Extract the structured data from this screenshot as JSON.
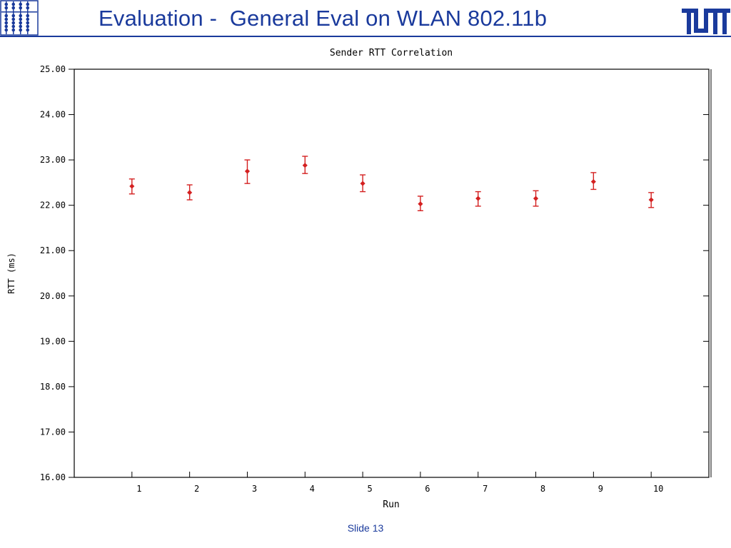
{
  "slide": {
    "title": "Evaluation -  General Eval on WLAN 802.11b",
    "footer": "Slide 13",
    "title_color": "#1a3a9c"
  },
  "chart_data": {
    "type": "scatter",
    "title": "Sender RTT Correlation",
    "xlabel": "Run",
    "ylabel": "RTT (ms)",
    "ylim": [
      16,
      25
    ],
    "xlim": [
      0,
      11
    ],
    "yticks": [
      "16.00",
      "17.00",
      "18.00",
      "19.00",
      "20.00",
      "21.00",
      "22.00",
      "23.00",
      "24.00",
      "25.00"
    ],
    "xticks": [
      "1",
      "2",
      "3",
      "4",
      "5",
      "6",
      "7",
      "8",
      "9",
      "10"
    ],
    "grid": false,
    "marker_color": "#d42020",
    "points": [
      {
        "x": 1,
        "y": 22.42,
        "err_low": 22.25,
        "err_high": 22.58
      },
      {
        "x": 2,
        "y": 22.28,
        "err_low": 22.12,
        "err_high": 22.45
      },
      {
        "x": 3,
        "y": 22.75,
        "err_low": 22.48,
        "err_high": 23.0
      },
      {
        "x": 4,
        "y": 22.88,
        "err_low": 22.7,
        "err_high": 23.08
      },
      {
        "x": 5,
        "y": 22.48,
        "err_low": 22.3,
        "err_high": 22.67
      },
      {
        "x": 6,
        "y": 22.03,
        "err_low": 21.88,
        "err_high": 22.2
      },
      {
        "x": 7,
        "y": 22.15,
        "err_low": 21.98,
        "err_high": 22.3
      },
      {
        "x": 8,
        "y": 22.15,
        "err_low": 21.98,
        "err_high": 22.32
      },
      {
        "x": 9,
        "y": 22.52,
        "err_low": 22.35,
        "err_high": 22.72
      },
      {
        "x": 10,
        "y": 22.12,
        "err_low": 21.95,
        "err_high": 22.28
      }
    ]
  }
}
